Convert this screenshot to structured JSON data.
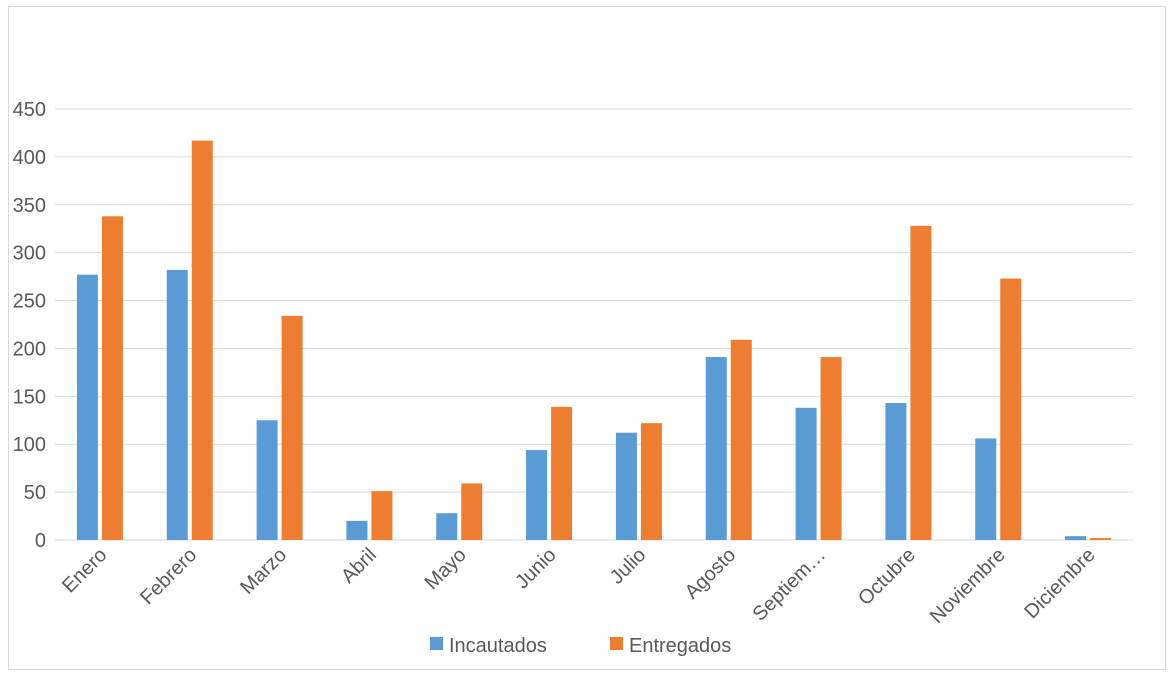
{
  "chart_data": {
    "type": "bar",
    "categories": [
      "Enero",
      "Febrero",
      "Marzo",
      "Abril",
      "Mayo",
      "Junio",
      "Julio",
      "Agosto",
      "Septiem…",
      "Octubre",
      "Noviembre",
      "Diciembre"
    ],
    "series": [
      {
        "name": "Incautados",
        "color": "#5b9bd5",
        "values": [
          277,
          282,
          125,
          20,
          28,
          94,
          112,
          191,
          138,
          143,
          106,
          4
        ]
      },
      {
        "name": "Entregados",
        "color": "#ed7d31",
        "values": [
          338,
          417,
          234,
          51,
          59,
          139,
          122,
          209,
          191,
          328,
          273,
          2
        ]
      }
    ],
    "yticks": [
      "0",
      "50",
      "100",
      "150",
      "200",
      "250",
      "300",
      "350",
      "400",
      "450"
    ],
    "ylim": [
      0,
      450
    ],
    "grid": true,
    "legend_position": "bottom",
    "title": "",
    "xlabel": "",
    "ylabel": ""
  }
}
